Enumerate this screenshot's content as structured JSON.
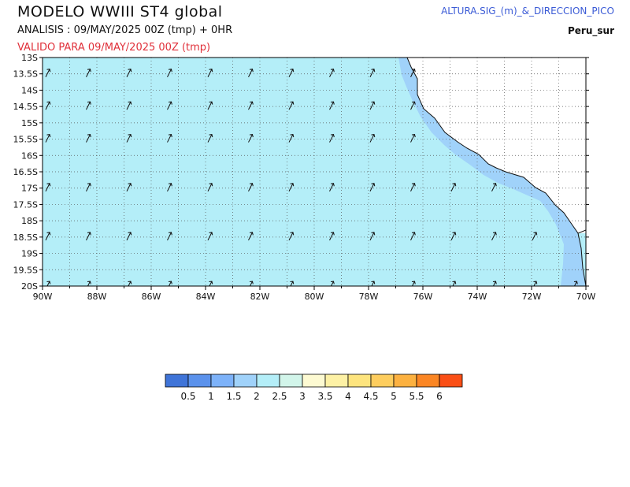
{
  "header": {
    "title": "MODELO  WWIII  ST4  global",
    "analysis": "ANALISIS : 09/MAY/2025 00Z  (tmp) + 0HR",
    "valid": "VALIDO PARA  09/MAY/2025 00Z  (tmp)",
    "variable": "ALTURA.SIG_(m)_&_DIRECCION_PICO",
    "region": "Peru_sur"
  },
  "map": {
    "lat_labels": [
      "13S",
      "13.5S",
      "14S",
      "14.5S",
      "15S",
      "15.5S",
      "16S",
      "16.5S",
      "17S",
      "17.5S",
      "18S",
      "18.5S",
      "19S",
      "19.5S",
      "20S"
    ],
    "lon_labels": [
      "90W",
      "88W",
      "86W",
      "84W",
      "82W",
      "80W",
      "78W",
      "76W",
      "74W",
      "72W",
      "70W"
    ],
    "lat_range": [
      -20,
      -13
    ],
    "lon_range": [
      -90,
      -70
    ],
    "sea_color": "#b4eef8",
    "coastal_band_color": "#a0d2fa",
    "land_color": "#ffffff",
    "wave_direction": "arrows pointing north-east"
  },
  "colorbar": {
    "colors": [
      "#3f74d8",
      "#5b92ec",
      "#7db2f9",
      "#a0d2fa",
      "#b4eef8",
      "#d2f5ea",
      "#fdfad2",
      "#fdf1a5",
      "#fde47e",
      "#fdcd5e",
      "#fcb140",
      "#fb8624",
      "#fa4f16"
    ],
    "labels": [
      "0.5",
      "1",
      "1.5",
      "2",
      "2.5",
      "3",
      "3.5",
      "4",
      "4.5",
      "5",
      "5.5",
      "6"
    ]
  }
}
